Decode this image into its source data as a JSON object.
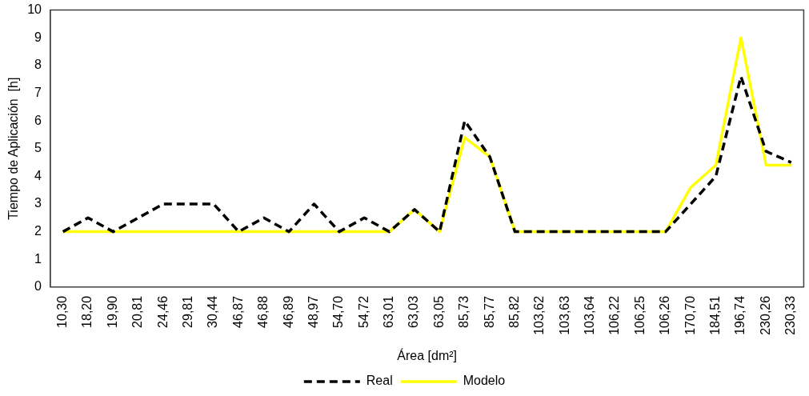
{
  "chart_data": {
    "type": "line",
    "xlabel": "Área [dm²]",
    "ylabel": "Tiempo de Aplicación  [h]",
    "categories": [
      "10,30",
      "18,20",
      "19,90",
      "20,81",
      "24,46",
      "29,81",
      "30,44",
      "46,87",
      "46,88",
      "46,89",
      "48,97",
      "54,70",
      "54,72",
      "63,01",
      "63,03",
      "63,05",
      "85,73",
      "85,77",
      "85,82",
      "103,62",
      "103,63",
      "103,64",
      "106,22",
      "106,25",
      "106,26",
      "170,70",
      "184,51",
      "196,74",
      "230,26",
      "230,33"
    ],
    "ylim": [
      0,
      10
    ],
    "yticks": [
      0,
      1,
      2,
      3,
      4,
      5,
      6,
      7,
      8,
      9,
      10
    ],
    "grid": false,
    "legend": "bottom",
    "marker": "none",
    "series": [
      {
        "name": "Real",
        "color": "#000000",
        "line_style": "dashed",
        "values": [
          2,
          2.5,
          2,
          2.5,
          3,
          3,
          3,
          2,
          2.5,
          2,
          3,
          2,
          2.5,
          2,
          2.8,
          2,
          6,
          4.7,
          2,
          2,
          2,
          2,
          2,
          2,
          2,
          3,
          4,
          7.6,
          4.9,
          4.5
        ]
      },
      {
        "name": "Modelo",
        "color": "#ffff00",
        "line_style": "solid",
        "values": [
          2,
          2,
          2,
          2,
          2,
          2,
          2,
          2,
          2,
          2,
          2,
          2,
          2,
          2,
          2.8,
          2,
          5.4,
          4.7,
          2,
          2,
          2,
          2,
          2,
          2,
          2,
          3.6,
          4.4,
          9,
          4.4,
          4.4
        ]
      }
    ]
  }
}
